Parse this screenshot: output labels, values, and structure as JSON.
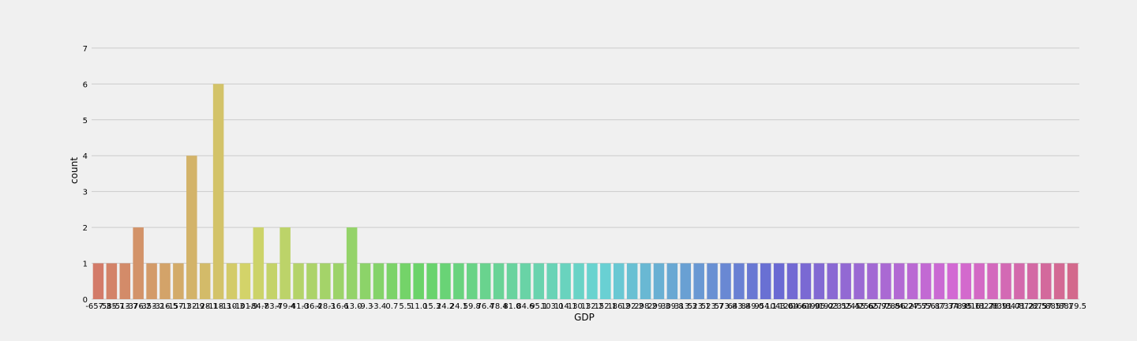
{
  "chart_data": {
    "type": "bar",
    "xlabel": "GDP",
    "ylabel": "count",
    "ylim": [
      0,
      7.35
    ],
    "yticks": [
      0,
      1,
      2,
      3,
      4,
      5,
      6,
      7
    ],
    "grid": true,
    "categories": [
      "-657.3",
      "-585.7",
      "-513.7",
      "-376.2",
      "-353.2",
      "-316.5",
      "-157.1",
      "-132.9",
      "-128.1",
      "-118.3",
      "-110.3",
      "-101.9",
      "-84.7",
      "-83.4",
      "-79.4",
      "-41.0",
      "-36.4",
      "-28.3",
      "-16.6",
      "-13.0",
      "-9.3",
      "-3.4",
      "0.7",
      "5.5",
      "11.0",
      "15.3",
      "24.2",
      "24.1",
      "59.8",
      "76.4",
      "78.4",
      "81.0",
      "84.6",
      "95.1",
      "103.0",
      "114.1",
      "130.1",
      "132.2",
      "152.1",
      "186.2",
      "192.2",
      "298.2",
      "299.3",
      "309.8",
      "313.3",
      "523.1",
      "523.7",
      "573.8",
      "643.8",
      "849.0",
      "954.1",
      "1043.0",
      "1264.6",
      "1664.9",
      "1905.0",
      "1923.5",
      "2315.4",
      "2455.6",
      "2565.9",
      "2775.8",
      "2856.2",
      "4227.5",
      "4577.8",
      "5617.3",
      "7374.9",
      "7835.1",
      "8161.2",
      "8278.1",
      "8391.0",
      "8471.2",
      "8722.5",
      "8757.1",
      "8857.1",
      "8879.5"
    ],
    "values": [
      1,
      1,
      1,
      2,
      1,
      1,
      1,
      4,
      1,
      6,
      1,
      1,
      2,
      1,
      2,
      1,
      1,
      1,
      1,
      2,
      1,
      1,
      1,
      1,
      1,
      1,
      1,
      1,
      1,
      1,
      1,
      1,
      1,
      1,
      1,
      1,
      1,
      1,
      1,
      1,
      1,
      1,
      1,
      1,
      1,
      1,
      1,
      1,
      1,
      1,
      1,
      1,
      1,
      1,
      1,
      1,
      1,
      1,
      1,
      1,
      1,
      1,
      1,
      1,
      1,
      1,
      1,
      1,
      1,
      1,
      1,
      1,
      1,
      1
    ]
  }
}
